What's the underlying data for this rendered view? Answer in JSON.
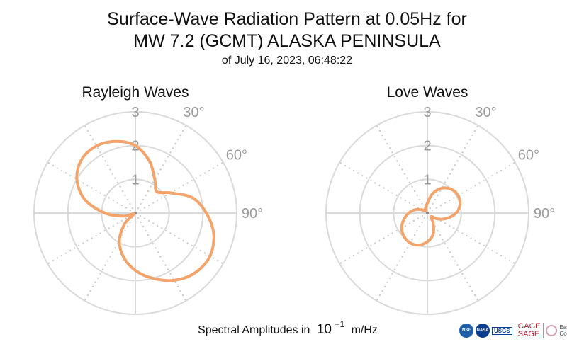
{
  "title_line1": "Surface-Wave Radiation Pattern at 0.05Hz for",
  "title_line2": "MW 7.2 (GCMT) ALASKA PENINSULA",
  "subtitle": "of July 16, 2023, 06:48:22",
  "caption_prefix": "Spectral Amplitudes in",
  "caption_base": "10",
  "caption_exp": "−1",
  "caption_unit": "m/Hz",
  "logos": {
    "nsf": "NSF",
    "nasa": "NASA",
    "usgs": "USGS",
    "gage": "GAGE",
    "sage": "SAGE",
    "earthscope": "EarthScope",
    "consortium": "Consortium"
  },
  "colors": {
    "pattern": "#f4a46a",
    "grid": "#dadada",
    "tick_text": "#9a9a9a"
  },
  "chart_data": [
    {
      "type": "polar-line",
      "title": "Rayleigh Waves",
      "r_ticks": [
        "1",
        "2",
        "3"
      ],
      "r_range": [
        0,
        3
      ],
      "theta_ticks": [
        "30°",
        "60°",
        "90°"
      ],
      "theta_zero": "north",
      "theta_direction": "clockwise",
      "grid": true,
      "theta_deg": [
        0,
        15,
        30,
        45,
        60,
        75,
        90,
        105,
        120,
        135,
        150,
        165,
        180,
        195,
        210,
        225,
        240,
        255,
        270,
        285,
        300,
        315,
        330,
        345
      ],
      "values": [
        2.0,
        1.6,
        1.15,
        0.9,
        1.2,
        1.75,
        2.1,
        2.4,
        2.55,
        2.5,
        2.3,
        2.0,
        1.7,
        1.35,
        0.95,
        0.45,
        0.05,
        0.35,
        0.9,
        1.55,
        2.0,
        2.25,
        2.3,
        2.2
      ]
    },
    {
      "type": "polar-line",
      "title": "Love Waves",
      "r_ticks": [
        "1",
        "2",
        "3"
      ],
      "r_range": [
        0,
        3
      ],
      "theta_ticks": [
        "30°",
        "60°",
        "90°"
      ],
      "theta_zero": "north",
      "theta_direction": "clockwise",
      "grid": true,
      "theta_deg": [
        0,
        15,
        30,
        45,
        60,
        75,
        90,
        105,
        120,
        135,
        150,
        165,
        180,
        195,
        210,
        225,
        240,
        255,
        270,
        285,
        300,
        315,
        330,
        345
      ],
      "values": [
        0.3,
        0.6,
        0.85,
        1.0,
        1.05,
        1.0,
        0.85,
        0.6,
        0.35,
        0.15,
        0.35,
        0.65,
        0.85,
        0.98,
        1.02,
        0.98,
        0.88,
        0.72,
        0.55,
        0.38,
        0.2,
        0.08,
        0.12,
        0.18
      ]
    }
  ]
}
